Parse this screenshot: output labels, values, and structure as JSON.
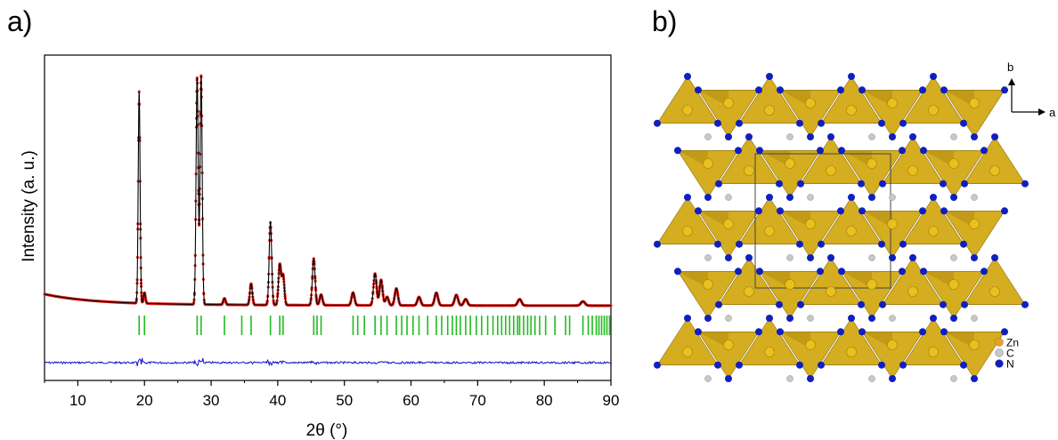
{
  "panels": {
    "a_label": "a)",
    "b_label": "b)"
  },
  "chart_data": {
    "type": "line",
    "xlabel": "2θ (°)",
    "ylabel": "Intensity (a. u.)",
    "xlim": [
      5,
      90
    ],
    "xticks": [
      10,
      20,
      30,
      40,
      50,
      60,
      70,
      80,
      90
    ],
    "grid": false,
    "series": [
      {
        "style": "observed (red points)",
        "color": "#e0201b",
        "peaks": [
          {
            "x": 19.2,
            "y": 100
          },
          {
            "x": 20.0,
            "y": 5
          },
          {
            "x": 27.9,
            "y": 107
          },
          {
            "x": 28.5,
            "y": 108
          },
          {
            "x": 32.0,
            "y": 3
          },
          {
            "x": 36.0,
            "y": 10
          },
          {
            "x": 38.9,
            "y": 39
          },
          {
            "x": 40.3,
            "y": 19
          },
          {
            "x": 40.8,
            "y": 14
          },
          {
            "x": 45.4,
            "y": 22
          },
          {
            "x": 46.5,
            "y": 5
          },
          {
            "x": 51.3,
            "y": 6
          },
          {
            "x": 54.6,
            "y": 15
          },
          {
            "x": 55.5,
            "y": 12
          },
          {
            "x": 56.4,
            "y": 4
          },
          {
            "x": 57.8,
            "y": 8
          },
          {
            "x": 61.2,
            "y": 4
          },
          {
            "x": 63.8,
            "y": 6
          },
          {
            "x": 66.8,
            "y": 5
          },
          {
            "x": 68.2,
            "y": 3
          },
          {
            "x": 76.3,
            "y": 3
          },
          {
            "x": 85.8,
            "y": 2
          }
        ]
      },
      {
        "style": "calculated (black line)",
        "color": "#000000"
      },
      {
        "style": "difference (blue line)",
        "color": "#1010c8"
      }
    ],
    "bragg_positions": [
      19.2,
      20.0,
      27.9,
      28.5,
      32.0,
      34.6,
      36.0,
      38.9,
      40.3,
      40.8,
      45.4,
      45.9,
      46.5,
      51.3,
      52.0,
      53.0,
      54.6,
      55.5,
      56.4,
      57.8,
      58.6,
      59.4,
      60.3,
      61.2,
      62.5,
      63.8,
      64.6,
      65.5,
      66.2,
      66.8,
      67.4,
      68.2,
      68.9,
      69.8,
      70.6,
      71.5,
      72.3,
      73.0,
      73.6,
      74.2,
      74.8,
      75.4,
      76.0,
      76.3,
      76.9,
      77.5,
      78.0,
      78.6,
      79.3,
      80.2,
      81.6,
      83.2,
      83.8,
      85.8,
      86.6,
      87.2,
      87.8,
      88.2,
      88.6,
      89.0,
      89.4,
      89.8
    ],
    "bragg_color": "#22bb22"
  },
  "structure": {
    "axes": {
      "b": "b",
      "a": "a"
    },
    "legend": [
      {
        "label": "Zn",
        "color": "#f0a020"
      },
      {
        "label": "C",
        "color": "#c8c8c8"
      },
      {
        "label": "N",
        "color": "#1020c0"
      }
    ],
    "polyhedron_color": "#d4ad20"
  }
}
